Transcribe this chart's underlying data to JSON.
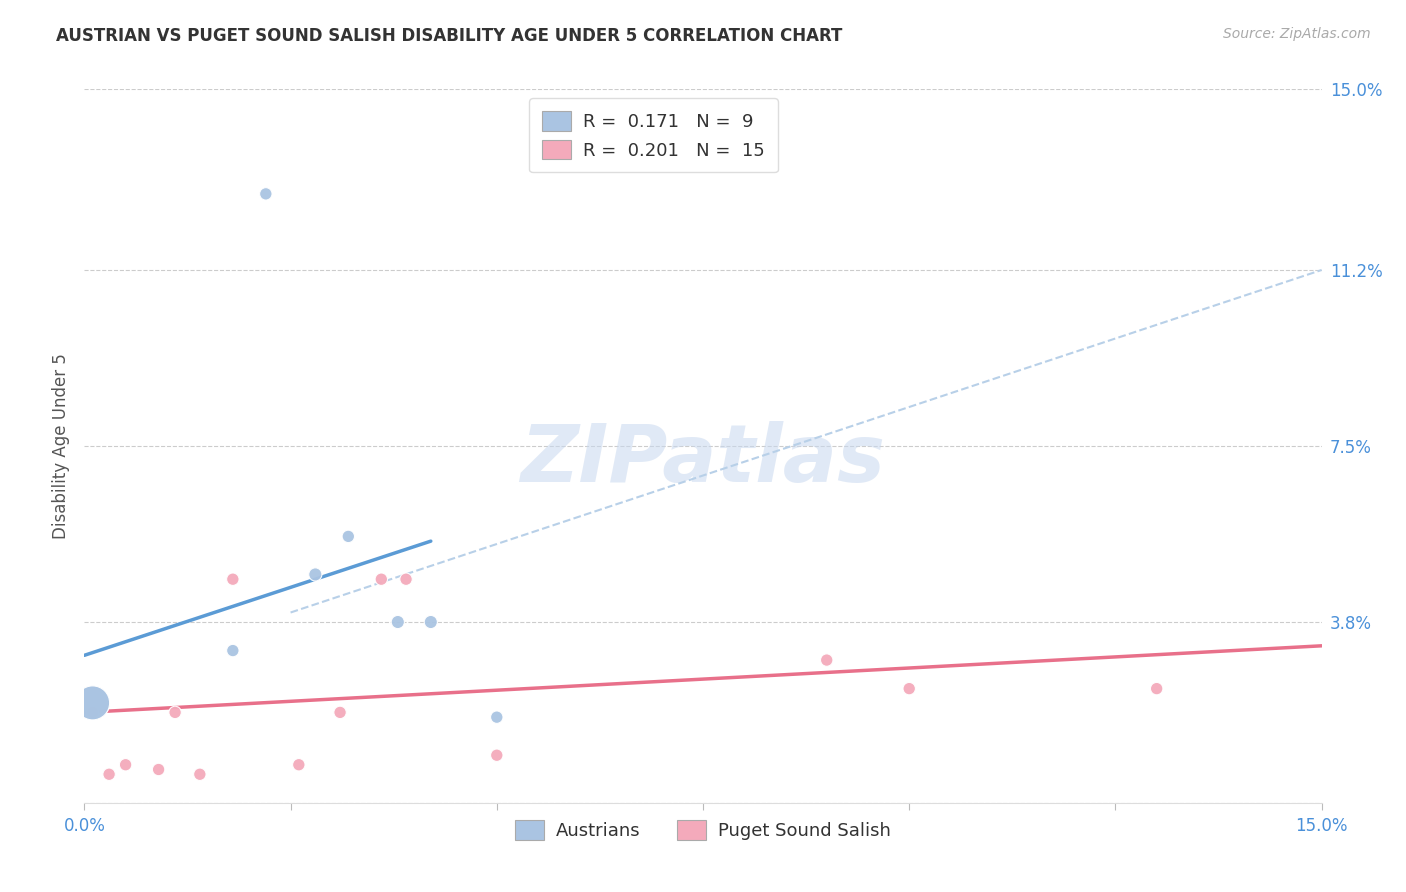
{
  "title": "AUSTRIAN VS PUGET SOUND SALISH DISABILITY AGE UNDER 5 CORRELATION CHART",
  "source": "Source: ZipAtlas.com",
  "ylabel": "Disability Age Under 5",
  "xlim": [
    0.0,
    0.15
  ],
  "ylim": [
    0.0,
    0.15
  ],
  "xticks": [
    0.0,
    0.025,
    0.05,
    0.075,
    0.1,
    0.125,
    0.15
  ],
  "xtick_labels": [
    "0.0%",
    "",
    "",
    "",
    "",
    "",
    "15.0%"
  ],
  "ytick_labels_right": [
    "15.0%",
    "11.2%",
    "7.5%",
    "3.8%",
    ""
  ],
  "ytick_positions_right": [
    0.15,
    0.112,
    0.075,
    0.038,
    0.0
  ],
  "watermark": "ZIPatlas",
  "legend_blue_R": "0.171",
  "legend_blue_N": "9",
  "legend_pink_R": "0.201",
  "legend_pink_N": "15",
  "blue_color": "#aac4e2",
  "pink_color": "#f4aabb",
  "blue_line_color": "#5b9bd5",
  "pink_line_color": "#e8708a",
  "dashed_line_color": "#b8d0e8",
  "austrians_x": [
    0.001,
    0.018,
    0.022,
    0.028,
    0.032,
    0.038,
    0.042,
    0.05,
    0.001
  ],
  "austrians_y": [
    0.021,
    0.032,
    0.128,
    0.048,
    0.056,
    0.038,
    0.038,
    0.018,
    0.021
  ],
  "austrians_size": [
    600,
    80,
    80,
    90,
    80,
    90,
    90,
    80,
    600
  ],
  "puget_x": [
    0.001,
    0.003,
    0.005,
    0.009,
    0.011,
    0.014,
    0.018,
    0.026,
    0.031,
    0.036,
    0.039,
    0.05,
    0.09,
    0.1,
    0.13
  ],
  "puget_y": [
    0.019,
    0.006,
    0.008,
    0.007,
    0.019,
    0.006,
    0.047,
    0.008,
    0.019,
    0.047,
    0.047,
    0.01,
    0.03,
    0.024,
    0.024
  ],
  "puget_size": [
    80,
    80,
    80,
    80,
    80,
    80,
    80,
    80,
    80,
    80,
    80,
    80,
    80,
    80,
    80
  ],
  "blue_trend_x": [
    0.0,
    0.042
  ],
  "blue_trend_y": [
    0.031,
    0.055
  ],
  "pink_trend_x": [
    0.0,
    0.15
  ],
  "pink_trend_y": [
    0.019,
    0.033
  ],
  "dashed_trend_x": [
    0.025,
    0.15
  ],
  "dashed_trend_y": [
    0.04,
    0.112
  ]
}
